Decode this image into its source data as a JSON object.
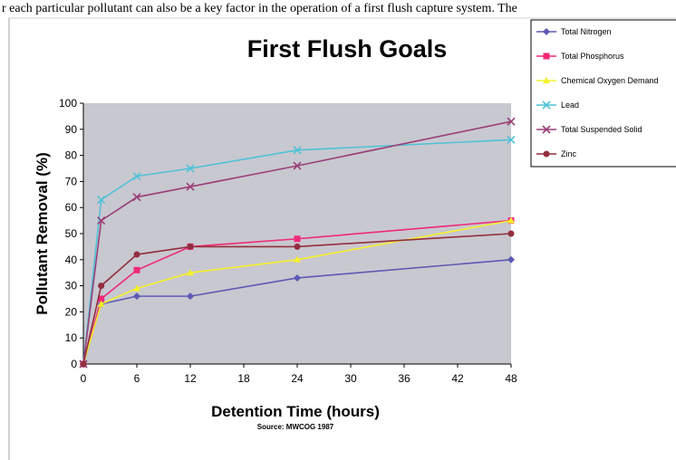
{
  "caption_fragment": "r each particular pollutant can also be a key factor in the operation of a first flush capture system. The",
  "chart_data": {
    "type": "line",
    "title": "First Flush Goals",
    "xlabel": "Detention Time (hours)",
    "ylabel": "Pollutant Removal (%)",
    "source": "Source: MWCOG 1987",
    "xlim": [
      0,
      48
    ],
    "ylim": [
      0,
      100
    ],
    "xticks": [
      "0",
      "6",
      "12",
      "18",
      "24",
      "30",
      "36",
      "42",
      "48"
    ],
    "yticks": [
      "0",
      "10",
      "20",
      "30",
      "40",
      "50",
      "60",
      "70",
      "80",
      "90",
      "100"
    ],
    "grid": false,
    "legend_position": "right",
    "x": [
      0,
      2,
      6,
      12,
      24,
      48
    ],
    "series": [
      {
        "name": "Total Nitrogen",
        "color": "#5d59b4",
        "marker": "diamond",
        "values": [
          0,
          23,
          26,
          26,
          33,
          40
        ]
      },
      {
        "name": "Total Phosphorus",
        "color": "#f0287a",
        "marker": "square",
        "values": [
          0,
          25,
          36,
          45,
          48,
          55
        ]
      },
      {
        "name": "Chemical Oxygen Demand",
        "color": "#f5f02c",
        "marker": "triangle",
        "values": [
          0,
          23,
          29,
          35,
          40,
          55
        ]
      },
      {
        "name": "Lead",
        "color": "#4fc1d8",
        "marker": "x",
        "values": [
          0,
          63,
          72,
          75,
          82,
          86
        ]
      },
      {
        "name": "Total Suspended Solid",
        "color": "#9a3f78",
        "marker": "x",
        "values": [
          0,
          55,
          64,
          68,
          76,
          93
        ]
      },
      {
        "name": "Zinc",
        "color": "#932e3e",
        "marker": "circle",
        "values": [
          0,
          30,
          42,
          45,
          45,
          50
        ]
      }
    ],
    "legend_labels": [
      "Total Nitrogen",
      "Total Phosphorus",
      "Chemical Oxygen Demand",
      "Lead",
      "Total Suspended Solid",
      "Zinc"
    ]
  },
  "colors": {
    "plot_background": "#c8c8d0",
    "axis": "#000000",
    "frame": "#a0a0a0"
  }
}
